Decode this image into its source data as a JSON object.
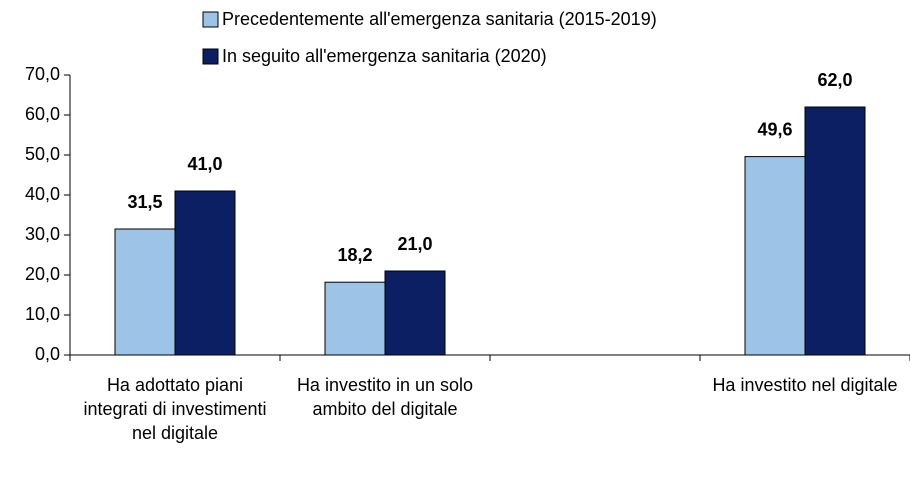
{
  "chart_data": {
    "type": "bar",
    "categories": [
      "Ha adottato piani integrati di investimenti nel digitale",
      "Ha investito in un solo ambito del digitale",
      null,
      "Ha investito nel digitale"
    ],
    "series": [
      {
        "name": "Precedentemente all'emergenza sanitaria (2015-2019)",
        "color": "#9dc3e6",
        "values": [
          31.5,
          18.2,
          null,
          49.6
        ],
        "value_labels": [
          "31,5",
          "18,2",
          null,
          "49,6"
        ]
      },
      {
        "name": "In seguito all'emergenza sanitaria (2020)",
        "color": "#0d1f63",
        "values": [
          41.0,
          21.0,
          null,
          62.0
        ],
        "value_labels": [
          "41,0",
          "21,0",
          null,
          "62,0"
        ]
      }
    ],
    "ylim": [
      0,
      70
    ],
    "yticks": [
      {
        "value": 0,
        "label": "0,0"
      },
      {
        "value": 10,
        "label": "10,0"
      },
      {
        "value": 20,
        "label": "20,0"
      },
      {
        "value": 30,
        "label": "30,0"
      },
      {
        "value": 40,
        "label": "40,0"
      },
      {
        "value": 50,
        "label": "50,0"
      },
      {
        "value": 60,
        "label": "60,0"
      },
      {
        "value": 70,
        "label": "70,0"
      }
    ],
    "grid": false,
    "legend": "top"
  }
}
